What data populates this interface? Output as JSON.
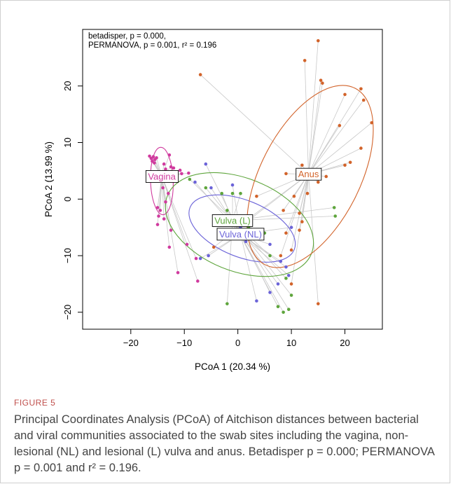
{
  "annotation": {
    "betadisper": "betadisper, p = 0.000,",
    "permanova": "PERMANOVA, p = 0.001, r² = 0.196"
  },
  "figure": {
    "label": "FIGURE 5",
    "caption": "Principal Coordinates Analysis (PCoA) of Aitchison distances between bacterial and viral communities associated to the swab sites including the vagina, non-lesional (NL) and lesional (L) vulva and anus. Betadisper p = 0.000; PERMANOVA p = 0.001 and r² = 0.196."
  },
  "colors": {
    "vagina": "#d03a9e",
    "vulva_L": "#5ea53c",
    "vulva_NL": "#6b63d8",
    "anus": "#d2632a",
    "segment": "#c8c8c8"
  },
  "chart_data": {
    "type": "scatter",
    "xlabel": "PCoA 1 (20.34 %)",
    "ylabel": "PCoA 2 (13.99 %)",
    "xlim": [
      -29,
      27
    ],
    "ylim": [
      -23,
      30
    ],
    "xticks": [
      -20,
      -10,
      0,
      10,
      20
    ],
    "yticks": [
      -20,
      -10,
      0,
      10,
      20
    ],
    "grid": false,
    "series": [
      {
        "name": "Vagina",
        "key": "vagina",
        "centroid": [
          -14.2,
          4.0
        ],
        "ellipse": {
          "cx": -14.2,
          "cy": 3.2,
          "rx": 6.3,
          "ry": 2.0,
          "angle": 92
        },
        "points": [
          [
            -16.5,
            7.6
          ],
          [
            -16.2,
            7.2
          ],
          [
            -15.8,
            7.5
          ],
          [
            -15.5,
            7.0
          ],
          [
            -15.2,
            7.3
          ],
          [
            -16.0,
            6.7
          ],
          [
            -15.6,
            6.4
          ],
          [
            -13.8,
            6.2
          ],
          [
            -12.8,
            7.8
          ],
          [
            -12.5,
            5.7
          ],
          [
            -13.5,
            5.3
          ],
          [
            -12.0,
            5.5
          ],
          [
            -10.8,
            5.1
          ],
          [
            -10.5,
            4.5
          ],
          [
            -9.2,
            4.6
          ],
          [
            -15.0,
            3.5
          ],
          [
            -14.0,
            2.0
          ],
          [
            -13.0,
            1.0
          ],
          [
            -13.5,
            -0.5
          ],
          [
            -15.0,
            -1.5
          ],
          [
            -14.5,
            -2.0
          ],
          [
            -14.8,
            -3.0
          ],
          [
            -13.8,
            -3.5
          ],
          [
            -15.0,
            -4.5
          ],
          [
            -12.5,
            -5.5
          ],
          [
            -12.8,
            -8.5
          ],
          [
            -9.5,
            -8.0
          ],
          [
            -11.2,
            -13.0
          ],
          [
            -7.8,
            -10.5
          ],
          [
            -7.5,
            -14.5
          ]
        ]
      },
      {
        "name": "Vulva (L)",
        "key": "vulva_L",
        "centroid": [
          -1.0,
          -3.8
        ],
        "ellipse": {
          "cx": 0.3,
          "cy": -4.5,
          "rx": 14.5,
          "ry": 8.2,
          "angle": -22
        },
        "points": [
          [
            -9.0,
            3.5
          ],
          [
            -6.0,
            2.0
          ],
          [
            -3.0,
            1.0
          ],
          [
            -1.0,
            1.0
          ],
          [
            0.5,
            1.0
          ],
          [
            -2.0,
            -2.0
          ],
          [
            1.0,
            -4.5
          ],
          [
            2.0,
            -5.0
          ],
          [
            5.0,
            -6.0
          ],
          [
            6.0,
            -10.0
          ],
          [
            9.0,
            -14.0
          ],
          [
            10.0,
            -17.0
          ],
          [
            7.5,
            -19.0
          ],
          [
            8.5,
            -20.0
          ],
          [
            9.5,
            -19.5
          ],
          [
            -2.0,
            -18.5
          ],
          [
            18.0,
            -1.5
          ],
          [
            18.2,
            -3.0
          ]
        ]
      },
      {
        "name": "Vulva (NL)",
        "key": "vulva_NL",
        "centroid": [
          0.5,
          -6.2
        ],
        "ellipse": {
          "cx": 0.8,
          "cy": -5.2,
          "rx": 10.5,
          "ry": 5.0,
          "angle": -22
        },
        "points": [
          [
            -6.0,
            6.2
          ],
          [
            -8.0,
            3.0
          ],
          [
            -5.0,
            2.0
          ],
          [
            -1.0,
            2.5
          ],
          [
            0.0,
            -4.0
          ],
          [
            0.5,
            -5.0
          ],
          [
            1.5,
            -7.5
          ],
          [
            3.0,
            -5.5
          ],
          [
            6.0,
            -8.0
          ],
          [
            8.0,
            -11.0
          ],
          [
            9.0,
            -12.0
          ],
          [
            9.5,
            -13.5
          ],
          [
            7.5,
            -15.0
          ],
          [
            3.5,
            -18.0
          ],
          [
            6.0,
            -16.5
          ],
          [
            -5.5,
            -10.0
          ],
          [
            -7.0,
            -10.5
          ],
          [
            10.0,
            -5.0
          ]
        ]
      },
      {
        "name": "Anus",
        "key": "anus",
        "centroid": [
          13.2,
          4.4
        ],
        "ellipse": {
          "cx": 13.5,
          "cy": 4.0,
          "rx": 18.5,
          "ry": 8.8,
          "angle": 63
        },
        "points": [
          [
            -7.0,
            22.0
          ],
          [
            15.0,
            28.0
          ],
          [
            12.5,
            24.5
          ],
          [
            15.5,
            21.0
          ],
          [
            15.8,
            20.5
          ],
          [
            20.0,
            18.5
          ],
          [
            23.0,
            19.5
          ],
          [
            23.5,
            17.5
          ],
          [
            25.0,
            13.5
          ],
          [
            19.0,
            13.0
          ],
          [
            23.0,
            9.0
          ],
          [
            21.0,
            6.5
          ],
          [
            20.0,
            6.0
          ],
          [
            16.5,
            4.0
          ],
          [
            15.0,
            3.0
          ],
          [
            12.0,
            6.0
          ],
          [
            13.0,
            1.0
          ],
          [
            10.5,
            0.5
          ],
          [
            11.5,
            -2.5
          ],
          [
            12.0,
            -4.0
          ],
          [
            11.5,
            -5.5
          ],
          [
            9.0,
            -6.0
          ],
          [
            10.0,
            -9.0
          ],
          [
            8.0,
            -10.0
          ],
          [
            10.0,
            -15.0
          ],
          [
            15.0,
            -18.5
          ],
          [
            -4.5,
            -8.5
          ],
          [
            0.5,
            -4.5
          ],
          [
            3.5,
            0.5
          ],
          [
            9.0,
            4.5
          ],
          [
            8.5,
            -2.0
          ]
        ]
      }
    ]
  }
}
